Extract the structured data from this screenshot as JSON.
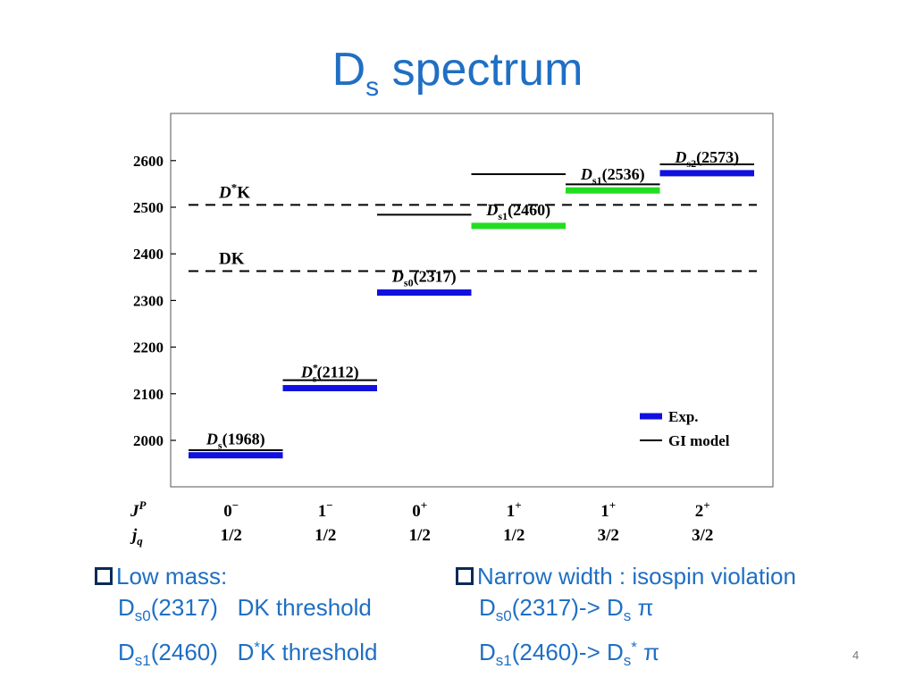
{
  "title": {
    "main": "D",
    "sub": "s",
    "rest": " spectrum"
  },
  "chart_data": {
    "type": "level-diagram",
    "ylim": [
      1890,
      2690
    ],
    "yticks": [
      2000,
      2100,
      2200,
      2300,
      2400,
      2500,
      2600
    ],
    "columns": [
      {
        "jp": "0",
        "jp_sup": "−",
        "jq": "1/2"
      },
      {
        "jp": "1",
        "jp_sup": "−",
        "jq": "1/2"
      },
      {
        "jp": "0",
        "jp_sup": "+",
        "jq": "1/2"
      },
      {
        "jp": "1",
        "jp_sup": "+",
        "jq": "1/2"
      },
      {
        "jp": "1",
        "jp_sup": "+",
        "jq": "3/2"
      },
      {
        "jp": "2",
        "jp_sup": "+",
        "jq": "3/2"
      }
    ],
    "row_labels": {
      "jp": "J",
      "jp_sup": "P",
      "jq": "j",
      "jq_sub": "q"
    },
    "exp_levels": [
      {
        "col": 0,
        "mass": 1968,
        "color": "#1010e0",
        "label": "D",
        "label_sub": "s",
        "label_sup": "",
        "label_mass": "(1968)"
      },
      {
        "col": 1,
        "mass": 2112,
        "color": "#1010e0",
        "label": "D",
        "label_sub": "s",
        "label_sup": "*",
        "label_mass": "(2112)"
      },
      {
        "col": 2,
        "mass": 2317,
        "color": "#1010e0",
        "label": "D",
        "label_sub": "s0",
        "label_sup": "",
        "label_mass": "(2317)"
      },
      {
        "col": 3,
        "mass": 2460,
        "color": "#22dd22",
        "label": "D",
        "label_sub": "s1",
        "label_sup": "",
        "label_mass": "(2460)"
      },
      {
        "col": 4,
        "mass": 2536,
        "color": "#22dd22",
        "label": "D",
        "label_sub": "s1",
        "label_sup": "",
        "label_mass": "(2536)"
      },
      {
        "col": 5,
        "mass": 2573,
        "color": "#1010e0",
        "label": "D",
        "label_sub": "s2",
        "label_sup": "",
        "label_mass": "(2573)"
      }
    ],
    "gi_levels": [
      {
        "col": 0,
        "mass": 1979
      },
      {
        "col": 1,
        "mass": 2129
      },
      {
        "col": 2,
        "mass": 2484
      },
      {
        "col": 3,
        "mass": 2571
      },
      {
        "col": 4,
        "mass": 2549
      },
      {
        "col": 5,
        "mass": 2592
      }
    ],
    "thresholds": [
      {
        "name": "DK",
        "mass": 2363
      },
      {
        "name": "D*K",
        "mass": 2505
      }
    ],
    "legend": [
      {
        "label": "Exp.",
        "color": "#1010e0",
        "style": "thick"
      },
      {
        "label": "GI model",
        "color": "#000000",
        "style": "thin"
      }
    ]
  },
  "bullets_left": {
    "head": "Low mass:",
    "line1": {
      "a": "D",
      "sub": "s0",
      "b": "(2317)   DK threshold"
    },
    "line2": {
      "a": "D",
      "sub": "s1",
      "b": "(2460)   D",
      "sup": "*",
      "c": "K threshold"
    }
  },
  "bullets_right": {
    "head": "Narrow width : isospin violation",
    "line1": {
      "a": "D",
      "sub": "s0",
      "b": "(2317)-> D",
      "sub2": "s",
      "c": " π"
    },
    "line2": {
      "a": "D",
      "sub": "s1",
      "b": "(2460)-> D",
      "sub2": "s",
      "sup": "*",
      "c": " π"
    }
  },
  "page_number": "4"
}
